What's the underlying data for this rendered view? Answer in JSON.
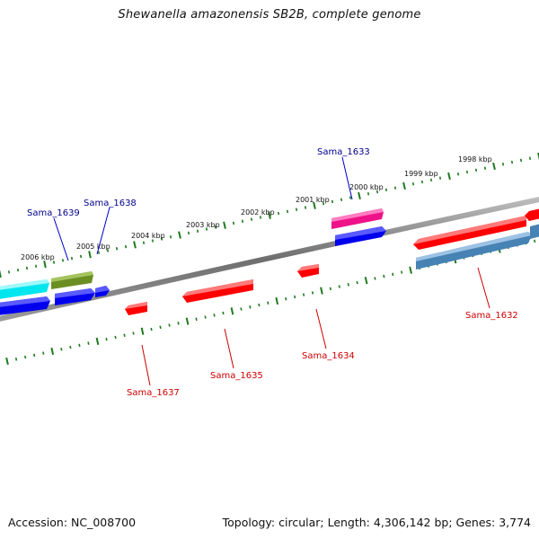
{
  "title": "Shewanella amazonensis SB2B, complete genome",
  "footer": {
    "accession": "Accession: NC_008700",
    "summary": "Topology: circular; Length: 4,306,142 bp; Genes: 3,774"
  },
  "scale_labels": [
    "2006 kbp",
    "2005 kbp",
    "2004 kbp",
    "2003 kbp",
    "2002 kbp",
    "2001 kbp",
    "2000 kbp",
    "1999 kbp",
    "1998 kbp"
  ],
  "gene_labels": {
    "forward": [
      "Sama_1639",
      "Sama_1638",
      "Sama_1633"
    ],
    "reverse": [
      "Sama_1637",
      "Sama_1635",
      "Sama_1634",
      "Sama_1632"
    ]
  },
  "colors": {
    "backbone": "#7a7a7a",
    "ticks": "#1f7a1f",
    "forward_label": "#00008b",
    "reverse_label": "#cc0000",
    "red": "#ff0000",
    "blue": "#0000ee",
    "cyan": "#00e5ee",
    "olive": "#6b8e23",
    "magenta": "#ee1289",
    "steelblue": "#4682b4"
  }
}
